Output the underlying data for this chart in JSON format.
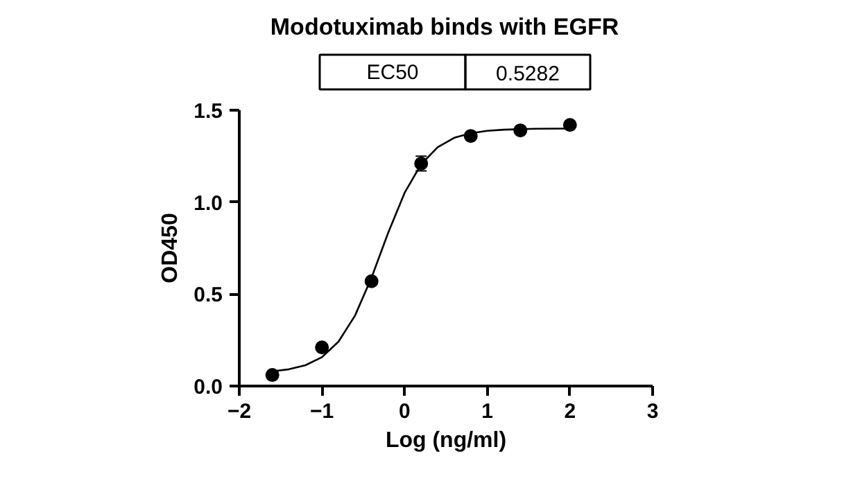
{
  "chart_data": {
    "type": "scatter",
    "title": "Modotuximab binds with EGFR",
    "xlabel": "Log (ng/ml)",
    "ylabel": "OD450",
    "annotations": [
      "EC50",
      "0.5282"
    ],
    "series": [
      {
        "color": "#000000",
        "marker": "circle",
        "x": [
          -1.6,
          -1.0,
          -0.4,
          0.2,
          0.8,
          1.4,
          2.0
        ],
        "values": [
          0.06,
          0.21,
          0.57,
          1.21,
          1.36,
          1.39,
          1.42
        ],
        "errors": [
          null,
          null,
          null,
          0.04,
          null,
          null,
          null
        ]
      },
      {
        "type": "line",
        "color": "#000000",
        "marker": "none",
        "line_style": "solid",
        "x": [
          -1.6,
          -1.4,
          -1.2,
          -1.0,
          -0.8,
          -0.6,
          -0.4,
          -0.2,
          0.0,
          0.2,
          0.4,
          0.6,
          0.8,
          1.0,
          1.2,
          1.4,
          1.6,
          2.0
        ],
        "values": [
          0.08,
          0.091,
          0.113,
          0.157,
          0.241,
          0.383,
          0.59,
          0.832,
          1.051,
          1.206,
          1.299,
          1.35,
          1.375,
          1.388,
          1.394,
          1.397,
          1.399,
          1.4
        ]
      }
    ],
    "xlim": [
      -2,
      3
    ],
    "xticks": [
      -2,
      -1,
      0,
      1,
      2,
      3
    ],
    "ylim": [
      0,
      1.5
    ],
    "yticks": [
      {
        "value": 0,
        "label": "0.0"
      },
      {
        "value": 0.5,
        "label": "0.5"
      },
      {
        "value": 1.0,
        "label": "1.0"
      },
      {
        "value": 1.5,
        "label": "1.5"
      }
    ],
    "grid": false
  }
}
